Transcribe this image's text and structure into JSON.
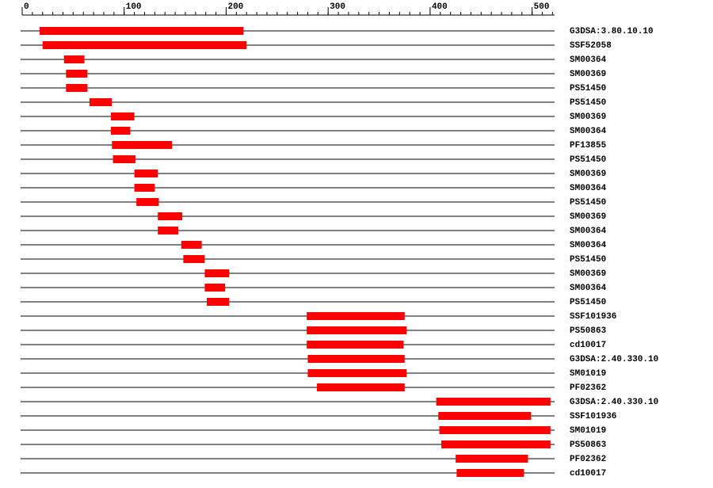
{
  "chart_data": {
    "type": "range",
    "categories": [
      "G3DSA:3.80.10.10",
      "SSF52058",
      "SM00364",
      "SM00369",
      "PS51450",
      "PS51450",
      "SM00369",
      "SM00364",
      "PF13855",
      "PS51450",
      "SM00369",
      "SM00364",
      "PS51450",
      "SM00369",
      "SM00364",
      "SM00364",
      "PS51450",
      "SM00369",
      "SM00364",
      "PS51450",
      "SSF101936",
      "PS50863",
      "cd10017",
      "G3DSA:2.40.330.10",
      "SM01019",
      "PF02362",
      "G3DSA:2.40.330.10",
      "SSF101936",
      "SM01019",
      "PS50863",
      "PF02362",
      "cd10017"
    ],
    "starts": [
      17,
      20,
      41,
      43,
      43,
      66,
      87,
      87,
      88,
      89,
      110,
      110,
      112,
      133,
      133,
      156,
      158,
      179,
      179,
      181,
      279,
      279,
      279,
      280,
      280,
      289,
      406,
      408,
      409,
      411,
      425,
      426
    ],
    "ends": [
      217,
      220,
      61,
      64,
      64,
      88,
      110,
      106,
      147,
      111,
      133,
      130,
      134,
      157,
      153,
      176,
      179,
      203,
      199,
      203,
      375,
      377,
      374,
      375,
      377,
      375,
      518,
      499,
      518,
      518,
      496,
      492
    ],
    "color": "#ff0000",
    "xlim": [
      0,
      522
    ],
    "xticks": [
      0,
      100,
      200,
      300,
      400,
      500
    ],
    "minor_tick_step": 10
  }
}
